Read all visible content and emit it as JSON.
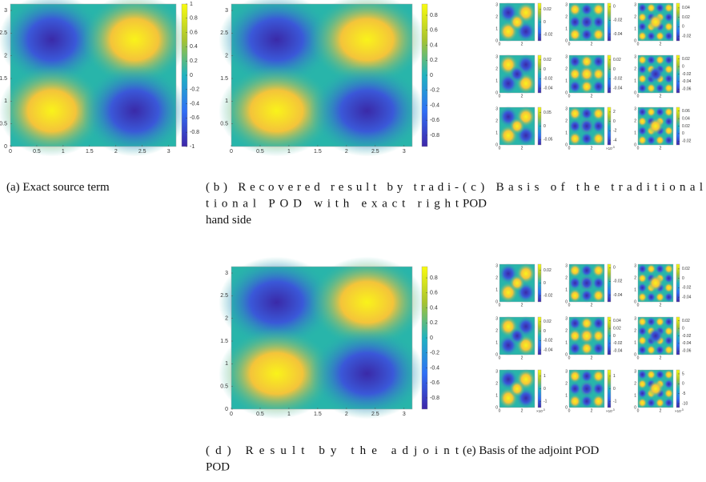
{
  "main_plots": [
    {
      "xlim": [
        0,
        3.1416
      ],
      "ylim": [
        0,
        3.1416
      ],
      "xticks": [
        0,
        0.5,
        1,
        1.5,
        2,
        2.5,
        3
      ],
      "yticks": [
        0,
        0.5,
        1,
        1.5,
        2,
        2.5,
        3
      ],
      "clim": [
        -1,
        1
      ],
      "cticks": [
        1,
        0.8,
        0.6,
        0.4,
        0.2,
        0,
        -0.2,
        -0.4,
        -0.6,
        -0.8,
        -1
      ]
    },
    {
      "xlim": [
        0,
        3.1416
      ],
      "ylim": [
        0,
        3.1416
      ],
      "xticks": [
        0,
        0.5,
        1,
        1.5,
        2,
        2.5,
        3
      ],
      "yticks": [
        0.5,
        1,
        1.5,
        2,
        2.5,
        3
      ],
      "clim": [
        -0.95,
        0.95
      ],
      "cticks": [
        0.8,
        0.6,
        0.4,
        0.2,
        0,
        -0.2,
        -0.4,
        -0.6,
        -0.8
      ]
    },
    {
      "xlim": [
        0,
        3.1416
      ],
      "ylim": [
        0,
        3.1416
      ],
      "xticks": [
        0,
        0.5,
        1,
        1.5,
        2,
        2.5,
        3
      ],
      "yticks": [
        0,
        0.5,
        1,
        1.5,
        2,
        2.5,
        3
      ],
      "clim": [
        -0.95,
        0.95
      ],
      "cticks": [
        0.8,
        0.6,
        0.4,
        0.2,
        0,
        -0.2,
        -0.4,
        -0.6,
        -0.8
      ]
    }
  ],
  "small_axes": {
    "lim": [
      0,
      3.1416
    ],
    "xticks": [
      0,
      2
    ],
    "yticks": [
      0,
      1,
      2,
      3
    ]
  },
  "multiplier": {
    "base": "×10",
    "exponent": "-3"
  },
  "traditional_basis": [
    {
      "clim": [
        -0.03,
        0.03
      ],
      "cticks": [
        0.02,
        0,
        -0.02
      ]
    },
    {
      "clim": [
        -0.05,
        0.005
      ],
      "cticks": [
        0,
        -0.02,
        -0.04
      ]
    },
    {
      "clim": [
        -0.03,
        0.05
      ],
      "cticks": [
        0.04,
        0.02,
        0,
        -0.02
      ]
    },
    {
      "clim": [
        -0.05,
        0.03
      ],
      "cticks": [
        0.02,
        0,
        -0.02,
        -0.04
      ]
    },
    {
      "clim": [
        -0.05,
        0.03
      ],
      "cticks": [
        0.02,
        0,
        -0.02,
        -0.04
      ]
    },
    {
      "clim": [
        -0.07,
        0.03
      ],
      "cticks": [
        0.02,
        0,
        -0.02,
        -0.04,
        -0.06
      ]
    },
    {
      "clim": [
        -0.07,
        0.07
      ],
      "cticks": [
        0.05,
        0,
        -0.05
      ]
    },
    {
      "clim": [
        -5,
        3
      ],
      "cticks": [
        2,
        0,
        -2,
        -4
      ],
      "scaled": true
    },
    {
      "clim": [
        -0.03,
        0.07
      ],
      "cticks": [
        0.06,
        0.04,
        0.02,
        0,
        -0.02
      ]
    }
  ],
  "adjoint_basis": [
    {
      "clim": [
        -0.03,
        0.03
      ],
      "cticks": [
        0.02,
        0,
        -0.02
      ]
    },
    {
      "clim": [
        -0.05,
        0.005
      ],
      "cticks": [
        0,
        -0.02,
        -0.04
      ]
    },
    {
      "clim": [
        -0.05,
        0.03
      ],
      "cticks": [
        0.02,
        0,
        -0.02,
        -0.04
      ]
    },
    {
      "clim": [
        -0.05,
        0.03
      ],
      "cticks": [
        0.02,
        0,
        -0.02,
        -0.04
      ]
    },
    {
      "clim": [
        -0.05,
        0.05
      ],
      "cticks": [
        0.04,
        0.02,
        0,
        -0.02,
        -0.04
      ]
    },
    {
      "clim": [
        -0.07,
        0.03
      ],
      "cticks": [
        0.02,
        0,
        -0.02,
        -0.04,
        -0.06
      ]
    },
    {
      "clim": [
        -1.5,
        1.5
      ],
      "cticks": [
        1,
        0,
        -1
      ],
      "scaled": true
    },
    {
      "clim": [
        -1.5,
        1.5
      ],
      "cticks": [
        1,
        0,
        -1
      ],
      "scaled": true
    },
    {
      "clim": [
        -12,
        7
      ],
      "cticks": [
        5,
        0,
        -5,
        -10
      ],
      "scaled": true
    }
  ],
  "captions": {
    "a": [
      "(a) Exact source term"
    ],
    "b": [
      "(b) Recovered result by tradi-",
      "tional POD with exact right",
      "hand side"
    ],
    "c": [
      "(c) Basis of the traditional",
      "POD"
    ],
    "d": [
      "(d) Result by the adjoint",
      "POD"
    ],
    "e": [
      "(e) Basis of the adjoint POD"
    ]
  }
}
